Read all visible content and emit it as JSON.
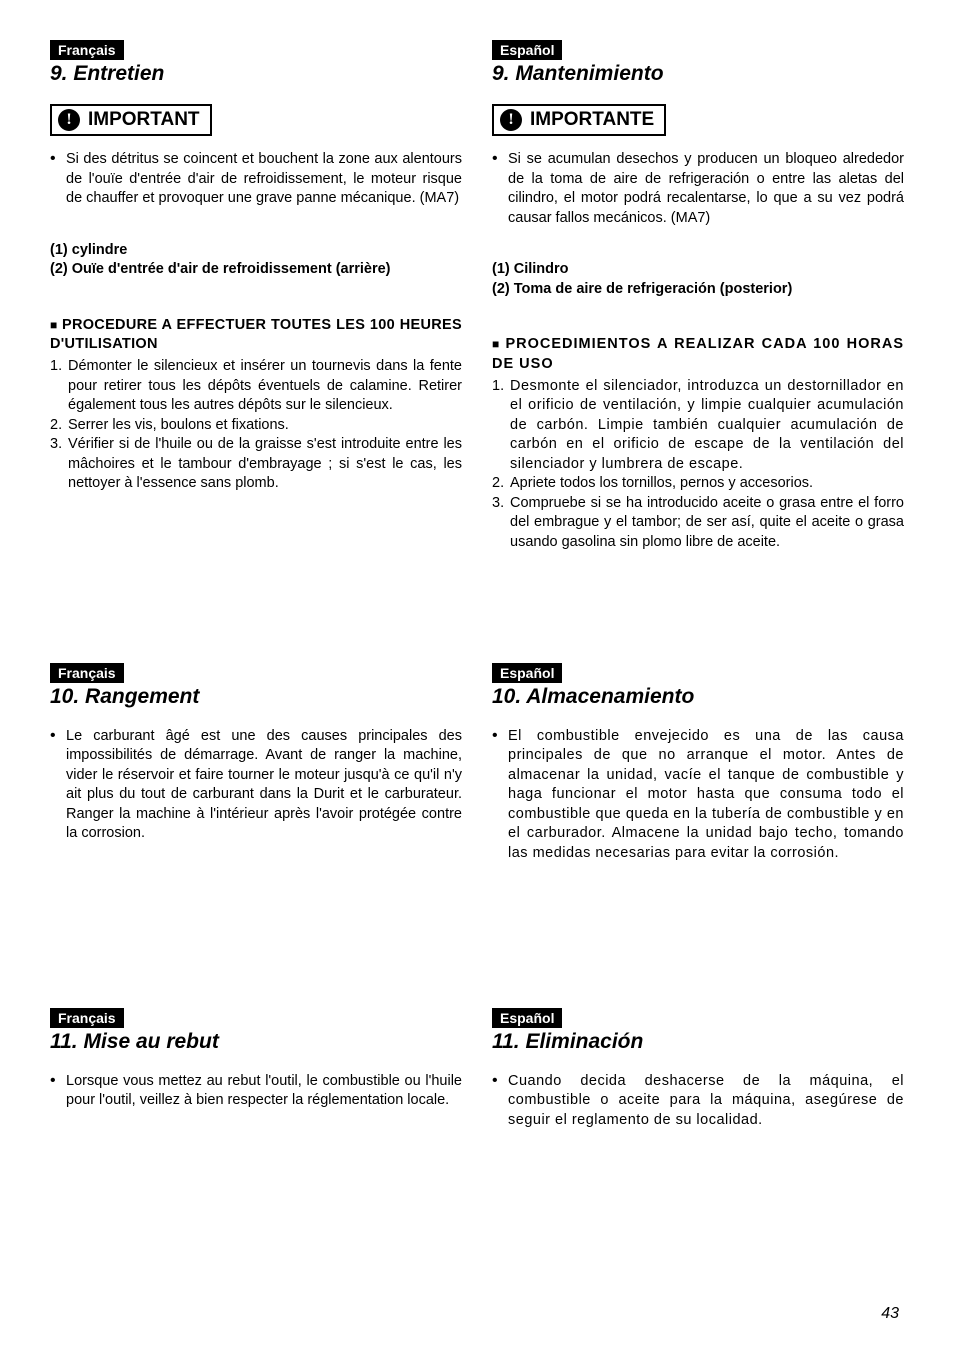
{
  "colors": {
    "tag_bg": "#000000",
    "tag_fg": "#ffffff",
    "page_bg": "#ffffff",
    "text": "#000000",
    "border": "#000000"
  },
  "typography": {
    "body_font": "Arial, Helvetica, sans-serif",
    "body_size_pt": 11,
    "title_size_pt": 16,
    "title_style": "italic bold",
    "notice_label_size_pt": 14
  },
  "page_number": "43",
  "fr": {
    "lang": "Français",
    "sec9": {
      "title": "9. Entretien",
      "notice": "IMPORTANT",
      "notice_bullet": "Si des détritus se coincent et bouchent la zone aux alentours de l'ouïe d'entrée d'air de refroidissement, le moteur risque de chauffer et provoquer une grave panne mécanique. (MA7)",
      "def1": "(1) cylindre",
      "def2": "(2) Ouïe d'entrée d'air de refroidissement (arrière)",
      "proc_heading": "PROCEDURE A EFFECTUER TOUTES LES 100 HEURES D'UTILISATION",
      "items": [
        "Démonter le silencieux et insérer un tournevis dans la fente pour retirer tous les dépôts éventuels de calamine. Retirer également tous les autres dépôts sur le silencieux.",
        "Serrer les vis, boulons et fixations.",
        "Vérifier si de l'huile ou de la graisse s'est introduite entre les mâchoires et le tambour d'embrayage ; si s'est le cas, les nettoyer à l'essence sans plomb."
      ]
    },
    "sec10": {
      "title": "10. Rangement",
      "bullet": "Le carburant âgé est une des causes principales des impossibilités de démarrage. Avant de ranger la machine, vider le réservoir et faire tourner le moteur jusqu'à ce qu'il n'y ait plus du tout de carburant dans la Durit et le carburateur. Ranger la machine à l'intérieur après l'avoir protégée contre la corrosion."
    },
    "sec11": {
      "title": "11. Mise au rebut",
      "bullet": "Lorsque vous mettez au rebut l'outil, le combustible ou l'huile pour l'outil, veillez à bien respecter la réglementation locale."
    }
  },
  "es": {
    "lang": "Español",
    "sec9": {
      "title": "9. Mantenimiento",
      "notice": "IMPORTANTE",
      "notice_bullet": "Si se acumulan desechos y producen un bloqueo alrededor de la toma de aire de refrigeración o entre las aletas del cilindro, el motor podrá recalentarse, lo que a su vez podrá causar fallos mecánicos. (MA7)",
      "def1": "(1) Cilindro",
      "def2": "(2) Toma de aire de refrigeración (posterior)",
      "proc_heading": "PROCEDIMIENTOS A REALIZAR CADA 100 HORAS DE USO",
      "items": [
        "Desmonte el silenciador, introduzca un destornillador en el orificio de ventilación, y limpie cualquier acumulación de carbón. Limpie también cualquier acumulación de carbón en el orificio de escape de la ventilación del silenciador y lumbrera de escape.",
        "Apriete todos los tornillos, pernos y accesorios.",
        "Compruebe si se ha introducido aceite o grasa entre el forro del embrague y el tambor; de ser así, quite el aceite o grasa usando gasolina sin plomo libre de aceite."
      ]
    },
    "sec10": {
      "title": "10. Almacenamiento",
      "bullet": "El combustible envejecido es una de las causa principales de que no arranque el motor. Antes de almacenar la unidad, vacíe el tanque de combustible y haga funcionar el motor hasta que consuma todo el combustible que queda en la tubería de combustible y en el carburador. Almacene la unidad bajo techo, tomando las medidas necesarias para evitar la corrosión."
    },
    "sec11": {
      "title": "11. Eliminación",
      "bullet": "Cuando decida deshacerse de la máquina, el combustible o aceite para la máquina, asegúrese de seguir el reglamento de su localidad."
    }
  }
}
